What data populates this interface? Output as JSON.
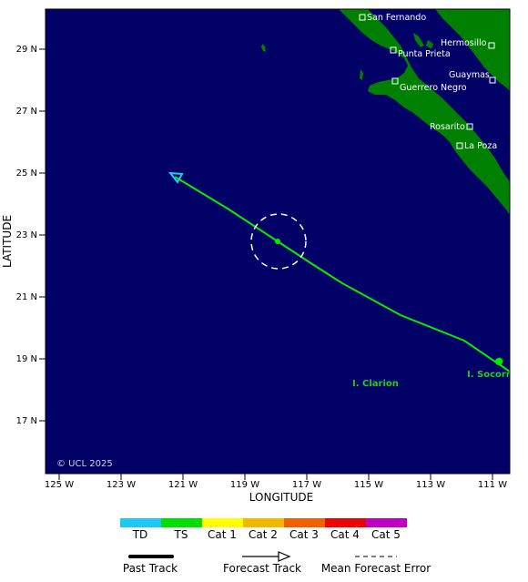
{
  "map": {
    "ocean_color": "#000066",
    "land_color": "#008000",
    "y_axis_title": "LATITUDE",
    "x_axis_title": "LONGITUDE",
    "lon_labels": [
      "125 W",
      "123 W",
      "121 W",
      "119 W",
      "117 W",
      "115 W",
      "113 W",
      "111 W"
    ],
    "lat_labels": [
      "29 N",
      "27 N",
      "25 N",
      "23 N",
      "21 N",
      "19 N",
      "17 N"
    ],
    "copyright": "© UCL 2025"
  },
  "places": [
    {
      "name": "San Fernando"
    },
    {
      "name": "Hermosillo"
    },
    {
      "name": "Punta Prieta"
    },
    {
      "name": "Guaymas"
    },
    {
      "name": "Guerrero Negro"
    },
    {
      "name": "Rosarito"
    },
    {
      "name": "La Poza"
    }
  ],
  "islands": [
    {
      "name": "I. Clarion"
    },
    {
      "name": "I. Socorro"
    }
  ],
  "track": {
    "color": "#00ee00",
    "current_position": {
      "lon": -117.8,
      "lat": 22.8
    },
    "forecast_end_color": "#22ccee"
  },
  "legend": {
    "scale": [
      {
        "label": "TD",
        "color": "#1ec8f0"
      },
      {
        "label": "TS",
        "color": "#00e000"
      },
      {
        "label": "Cat 1",
        "color": "#ffff00"
      },
      {
        "label": "Cat 2",
        "color": "#f0b800"
      },
      {
        "label": "Cat 3",
        "color": "#f06000"
      },
      {
        "label": "Cat 4",
        "color": "#f00000"
      },
      {
        "label": "Cat 5",
        "color": "#c000c0"
      }
    ],
    "past_track": "Past Track",
    "forecast_track": "Forecast Track",
    "mean_error": "Mean Forecast Error"
  }
}
